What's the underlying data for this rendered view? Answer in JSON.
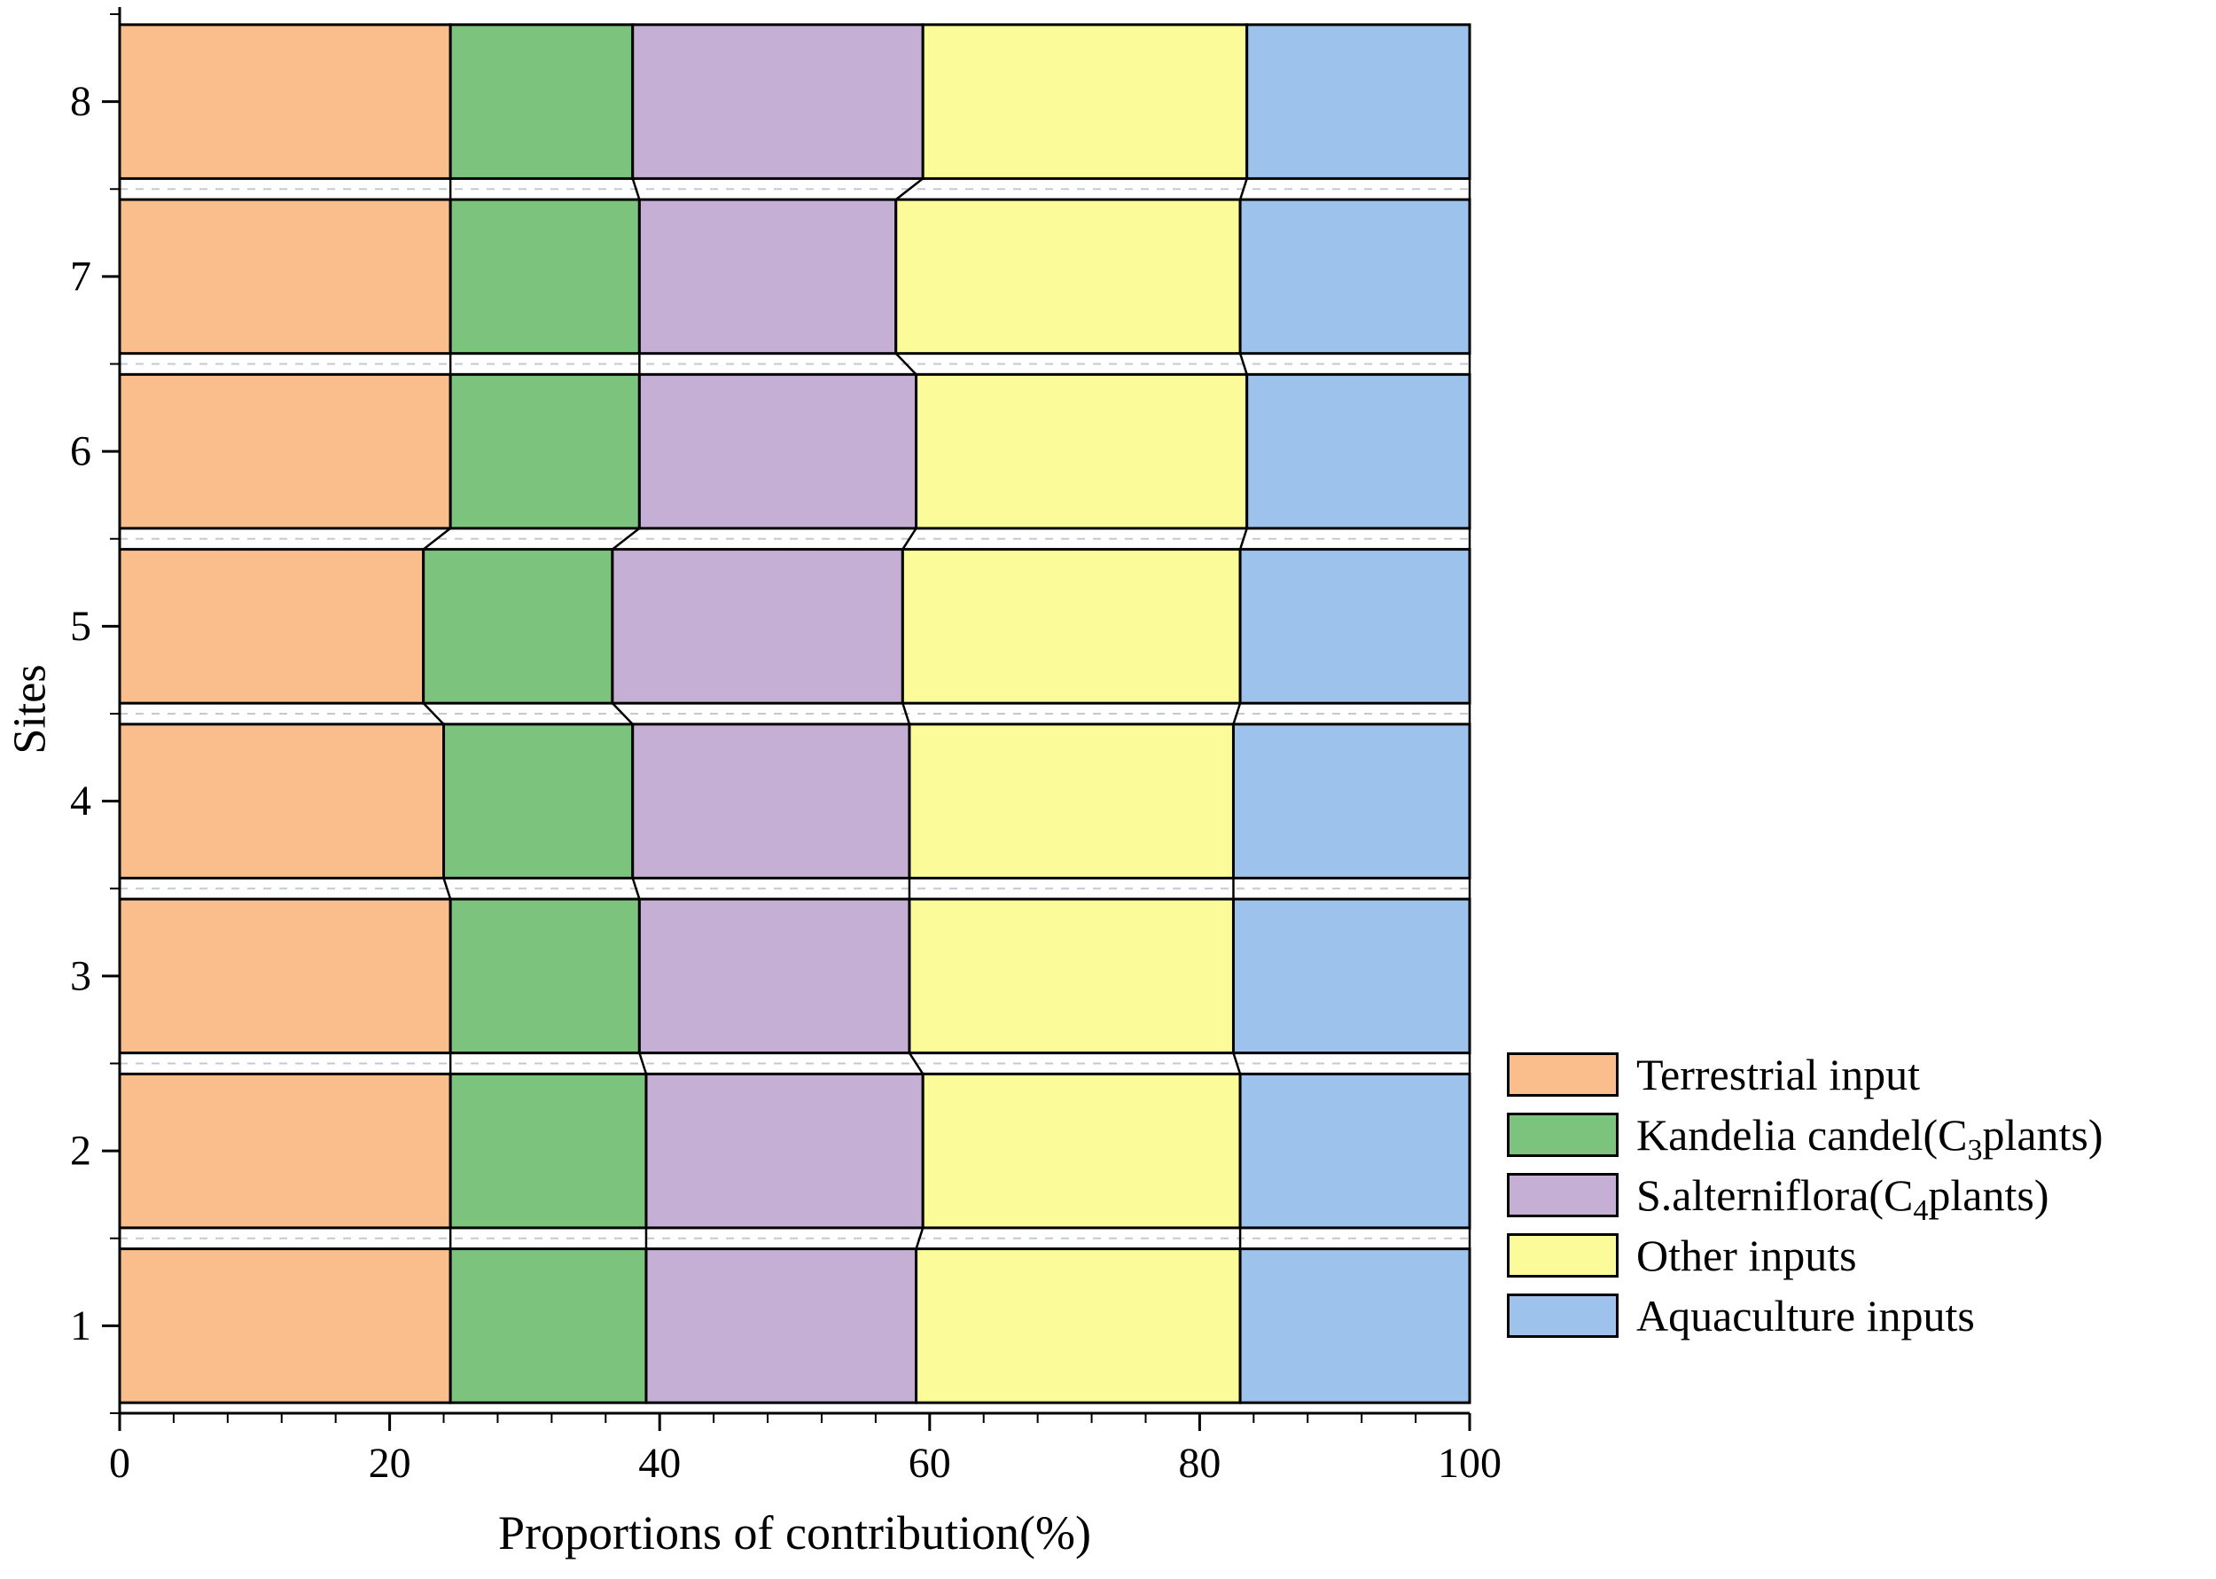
{
  "chart_data": {
    "type": "bar",
    "orientation": "horizontal",
    "stacked": true,
    "title": "",
    "xlabel": "Proportions of contribution(%)",
    "ylabel": "Sites",
    "xlim": [
      0,
      100
    ],
    "xticks": [
      0,
      20,
      40,
      60,
      80,
      100
    ],
    "x_minor_step": 4,
    "grid": "dashed horizontal lines in gaps between bars",
    "legend_position": "outside right, lower area",
    "categories": [
      "1",
      "2",
      "3",
      "4",
      "5",
      "6",
      "7",
      "8"
    ],
    "series": [
      {
        "name": "Terrestrial input",
        "color": "#F9BE8C",
        "values": [
          24.5,
          24.5,
          24.5,
          24,
          22.5,
          24.5,
          24.5,
          24.5
        ]
      },
      {
        "name": "Kandelia candel(C3plants)",
        "color": "#7CC47E",
        "values": [
          14.5,
          14.5,
          14,
          14,
          14,
          14,
          14,
          13.5
        ]
      },
      {
        "name": "S.alterniflora(C4plants)",
        "color": "#C5AFD4",
        "values": [
          20,
          20.5,
          20,
          20.5,
          21.5,
          20.5,
          19,
          21.5
        ]
      },
      {
        "name": "Other inputs",
        "color": "#FBFB9A",
        "values": [
          24,
          23.5,
          24,
          24,
          25,
          24.5,
          25.5,
          24
        ]
      },
      {
        "name": "Aquaculture inputs",
        "color": "#9DC3EC",
        "values": [
          17,
          17,
          17.5,
          17.5,
          17,
          16.5,
          17,
          16.5
        ]
      }
    ]
  },
  "legend": {
    "items": [
      {
        "label_pre": "Terrestrial input",
        "label_sub": "",
        "label_post": ""
      },
      {
        "label_pre": "Kandelia candel(C",
        "label_sub": "3",
        "label_post": "plants)"
      },
      {
        "label_pre": "S.alterniflora(C",
        "label_sub": "4",
        "label_post": "plants)"
      },
      {
        "label_pre": "Other inputs",
        "label_sub": "",
        "label_post": ""
      },
      {
        "label_pre": "Aquaculture inputs",
        "label_sub": "",
        "label_post": ""
      }
    ]
  }
}
